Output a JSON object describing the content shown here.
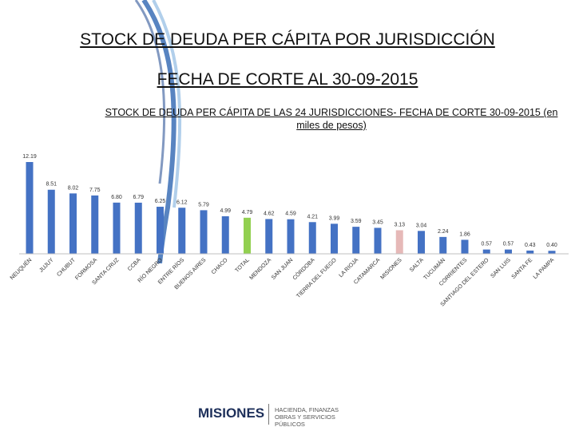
{
  "header": {
    "title_line1": "STOCK DE DEUDA PER CÁPITA POR JURISDICCIÓN",
    "title_line2": "FECHA DE CORTE AL 30-09-2015"
  },
  "chart_data": {
    "type": "bar",
    "title": "STOCK DE DEUDA PER CÁPITA DE LAS 24 JURISDICCIONES- FECHA DE CORTE 30-09-2015 (en miles de pesos)",
    "xlabel": "",
    "ylabel": "",
    "ylim": [
      0,
      12.5
    ],
    "grid": false,
    "categories": [
      "NEUQUÉN",
      "JUJUY",
      "CHUBUT",
      "FORMOSA",
      "SANTA CRUZ",
      "CCBA",
      "RÍO NEGRO",
      "ENTRE RÍOS",
      "BUENOS AIRES",
      "CHACO",
      "TOTAL",
      "MENDOZA",
      "SAN JUAN",
      "CÓRDOBA",
      "TIERRA DEL FUEGO",
      "LA RIOJA",
      "CATAMARCA",
      "MISIONES",
      "SALTA",
      "TUCUMÁN",
      "CORRIENTES",
      "SANTIAGO DEL ESTERO",
      "SAN LUIS",
      "SANTA FE",
      "LA PAMPA"
    ],
    "values": [
      12.19,
      8.51,
      8.02,
      7.75,
      6.8,
      6.79,
      6.25,
      6.12,
      5.79,
      4.99,
      4.79,
      4.62,
      4.59,
      4.21,
      3.99,
      3.59,
      3.45,
      3.13,
      3.04,
      2.24,
      1.86,
      0.57,
      0.57,
      0.43,
      0.4
    ],
    "labels": [
      "12.19",
      "8.51",
      "8.02",
      "7.75",
      "6.80",
      "6.79",
      "6.25",
      "6.12",
      "5.79",
      "4.99",
      "4.79",
      "4.62",
      "4.59",
      "4.21",
      "3.99",
      "3.59",
      "3.45",
      "3.13",
      "3.04",
      "2.24",
      "1.86",
      "0.57",
      "0.57",
      "0.43",
      "0.40"
    ],
    "colors": {
      "default": "#4472c4",
      "TOTAL": "#92d050",
      "MISIONES": "#e6b9b8"
    }
  },
  "footer": {
    "brand": "MISIONES",
    "subtitle_line1": "HACIENDA, FINANZAS",
    "subtitle_line2": "OBRAS Y SERVICIOS PÚBLICOS"
  }
}
